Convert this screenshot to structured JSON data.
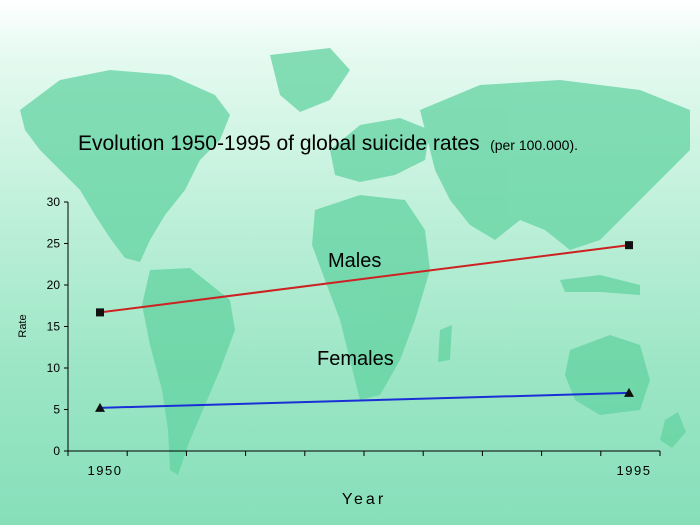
{
  "colors": {
    "males_line": "#cc2222",
    "females_line": "#1a2fd6",
    "marker": "#111111",
    "map": "#63d3a1"
  },
  "chart_data": {
    "type": "line",
    "title": "Evolution 1950-1995 of global suicide rates",
    "subtitle": "(per 100.000).",
    "xlabel": "Year",
    "ylabel": "Rate",
    "x": [
      1950,
      1995
    ],
    "xticks": [
      "1950",
      "1995"
    ],
    "ylim": [
      0,
      30
    ],
    "yticks": [
      "0",
      "5",
      "10",
      "15",
      "20",
      "25",
      "30"
    ],
    "grid": false,
    "series": [
      {
        "name": "Males",
        "values": [
          16.7,
          24.8
        ],
        "marker": "square"
      },
      {
        "name": "Females",
        "values": [
          5.2,
          7.0
        ],
        "marker": "triangle"
      }
    ]
  }
}
